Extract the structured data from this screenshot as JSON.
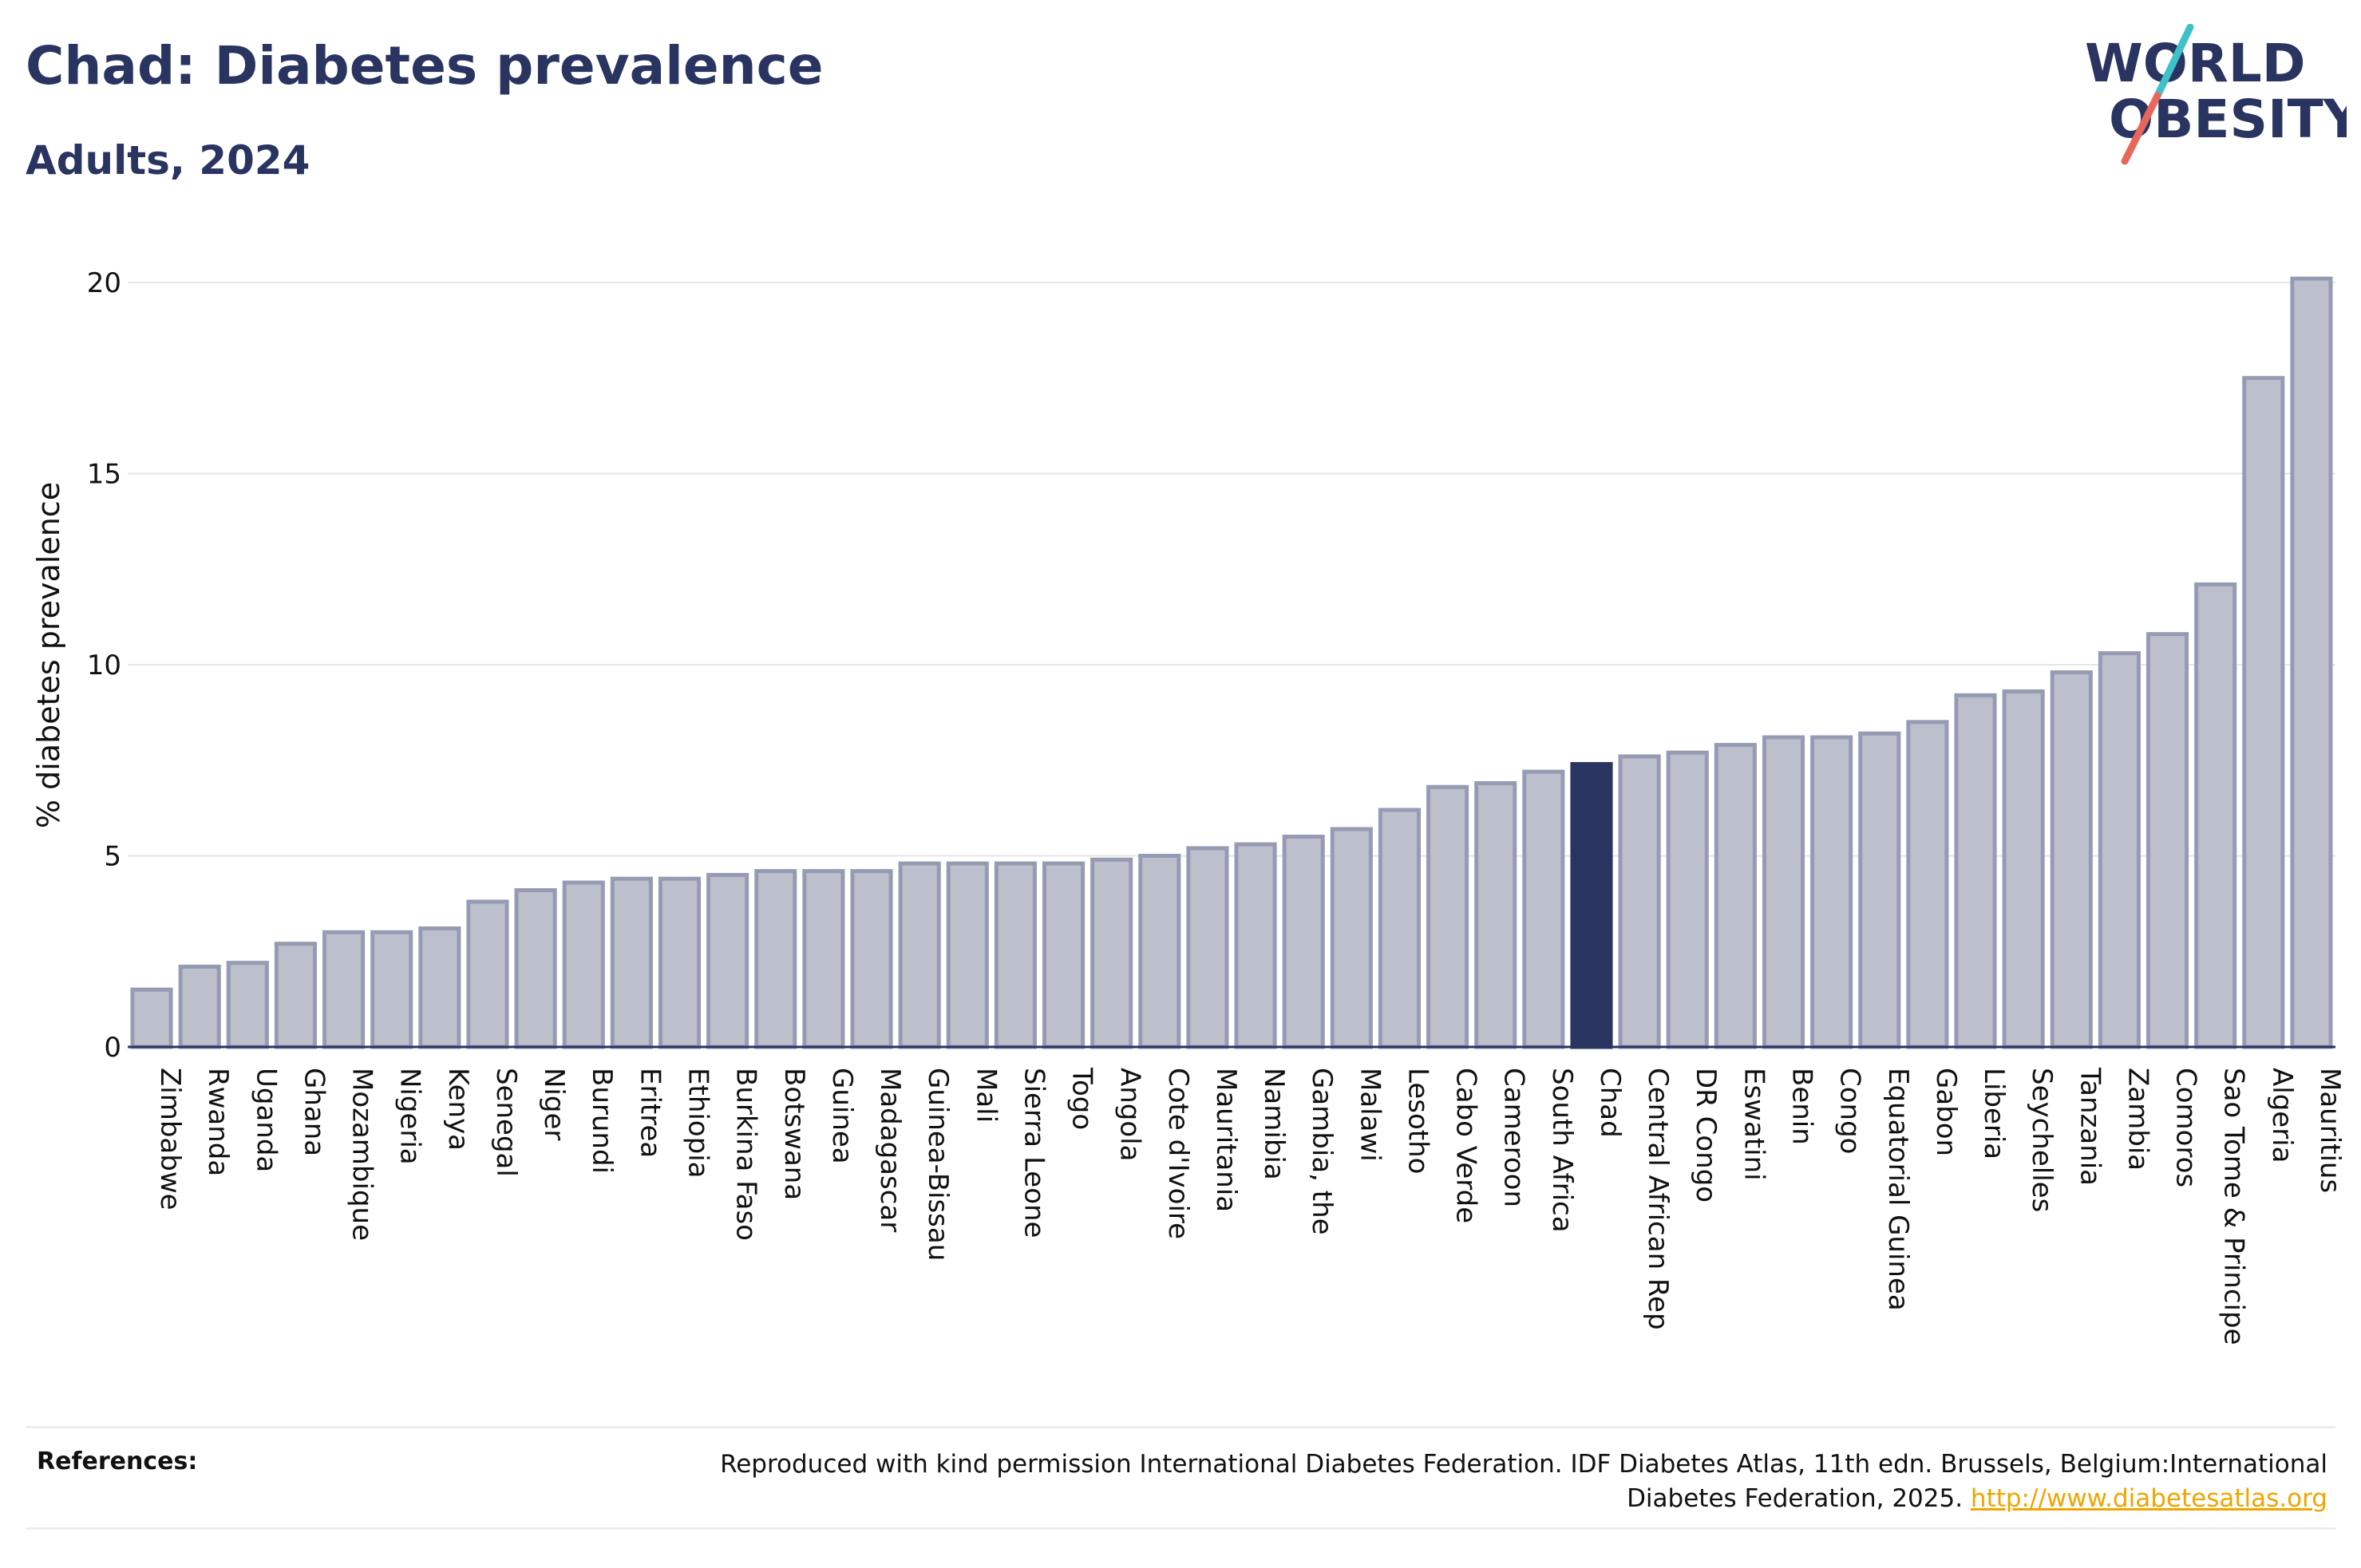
{
  "header": {
    "title": "Chad: Diabetes prevalence",
    "subtitle": "Adults, 2024"
  },
  "logo": {
    "line1": "WORLD",
    "line2": "OBESITY",
    "slash_colors": [
      "#3ec1c9",
      "#e8675a"
    ]
  },
  "references": {
    "label": "References:",
    "text": "Reproduced with kind permission International Diabetes Federation. IDF Diabetes Atlas, 11th edn. Brussels, Belgium:International Diabetes Federation, 2025.",
    "link": "http://www.diabetesatlas.org"
  },
  "colors": {
    "bar_fill": "#bcc0cd",
    "bar_stroke": "#959bb3",
    "highlight": "#2a3461",
    "grid": "#e6e6e6",
    "axis": "#2a3461"
  },
  "chart_data": {
    "type": "bar",
    "title": "Chad: Diabetes prevalence",
    "subtitle": "Adults, 2024",
    "xlabel": "",
    "ylabel": "% diabetes prevalence",
    "ylim": [
      0,
      20.5
    ],
    "yticks": [
      0,
      5,
      10,
      15,
      20
    ],
    "grid": true,
    "highlight": "Chad",
    "categories": [
      "Zimbabwe",
      "Rwanda",
      "Uganda",
      "Ghana",
      "Mozambique",
      "Nigeria",
      "Kenya",
      "Senegal",
      "Niger",
      "Burundi",
      "Eritrea",
      "Ethiopia",
      "Burkina Faso",
      "Botswana",
      "Guinea",
      "Madagascar",
      "Guinea-Bissau",
      "Mali",
      "Sierra Leone",
      "Togo",
      "Angola",
      "Cote d'Ivoire",
      "Mauritania",
      "Namibia",
      "Gambia, the",
      "Malawi",
      "Lesotho",
      "Cabo Verde",
      "Cameroon",
      "South Africa",
      "Chad",
      "Central African Rep",
      "DR Congo",
      "Eswatini",
      "Benin",
      "Congo",
      "Equatorial Guinea",
      "Gabon",
      "Liberia",
      "Seychelles",
      "Tanzania",
      "Zambia",
      "Comoros",
      "Sao Tome & Principe",
      "Algeria",
      "Mauritius"
    ],
    "values": [
      1.5,
      2.1,
      2.2,
      2.7,
      3.0,
      3.0,
      3.1,
      3.8,
      4.1,
      4.3,
      4.4,
      4.4,
      4.5,
      4.6,
      4.6,
      4.6,
      4.8,
      4.8,
      4.8,
      4.8,
      4.9,
      5.0,
      5.2,
      5.3,
      5.5,
      5.7,
      6.2,
      6.8,
      6.9,
      7.2,
      7.4,
      7.6,
      7.7,
      7.9,
      8.1,
      8.1,
      8.2,
      8.5,
      9.2,
      9.3,
      9.8,
      10.3,
      10.8,
      12.1,
      17.5,
      20.1
    ]
  }
}
